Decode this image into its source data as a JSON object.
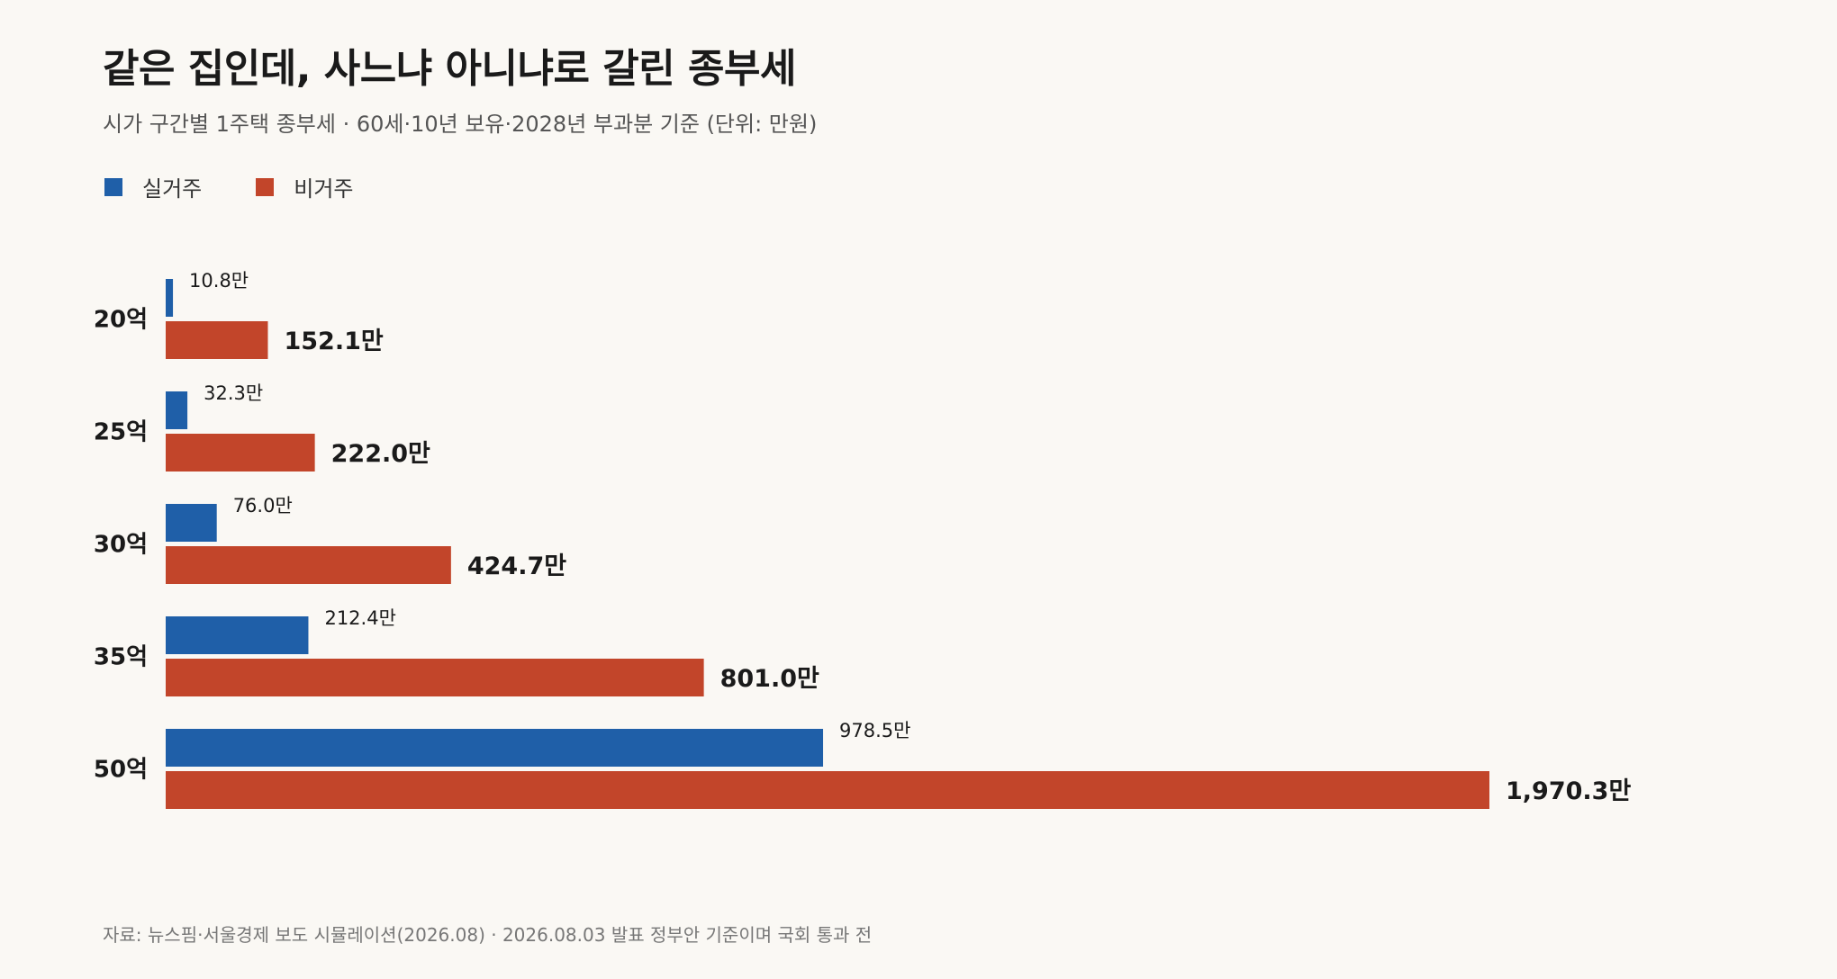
{
  "header": {
    "title": "같은 집인데, 사느냐 아니냐로 갈린 종부세",
    "subtitle": "시가 구간별 1주택 종부세 · 60세·10년 보유·2028년 부과분 기준 (단위: 만원)"
  },
  "footer": {
    "source": "자료: 뉴스핌·서울경제 보도 시뮬레이션(2026.08) · 2026.08.03 발표 정부안 기준이며 국회 통과 전"
  },
  "colors": {
    "resident": "#1f5fa8",
    "nonresident": "#c2452a",
    "background": "#faf8f4"
  },
  "chart_data": {
    "type": "bar",
    "orientation": "horizontal",
    "categories": [
      "20억",
      "25억",
      "30억",
      "35억",
      "50억"
    ],
    "series": [
      {
        "name": "실거주",
        "values": [
          10.8,
          32.3,
          76.0,
          212.4,
          978.5
        ],
        "labels": [
          "10.8만",
          "32.3만",
          "76.0만",
          "212.4만",
          "978.5만"
        ]
      },
      {
        "name": "비거주",
        "values": [
          152.1,
          222.0,
          424.7,
          801.0,
          1970.3
        ],
        "labels": [
          "152.1만",
          "222.0만",
          "424.7만",
          "801.0만",
          "1,970.3만"
        ]
      }
    ],
    "xlim": [
      0,
      1970.3
    ],
    "grid": false,
    "legend": "top-left",
    "unit": "만원"
  }
}
